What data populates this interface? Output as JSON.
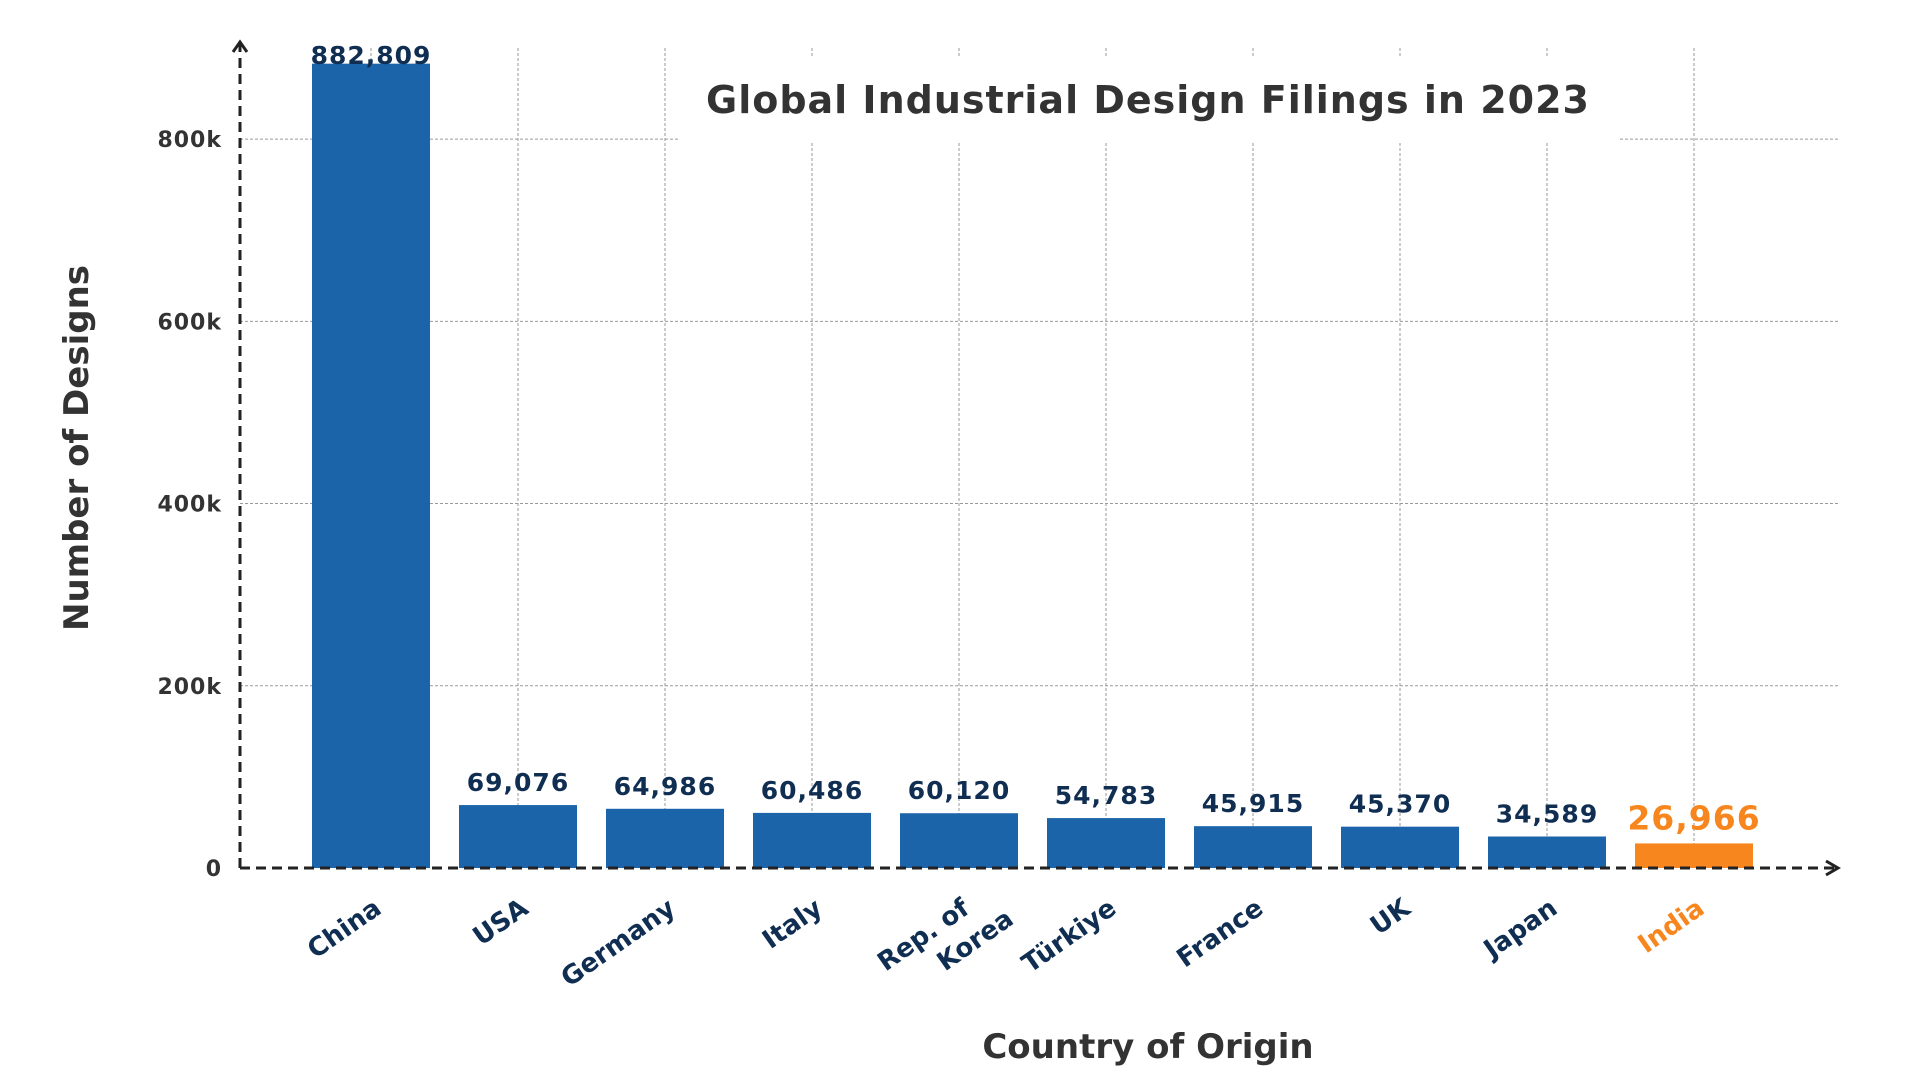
{
  "chart_data": {
    "type": "bar",
    "title": "Global Industrial Design Filings in 2023",
    "xlabel": "Country of Origin",
    "ylabel": "Number of Designs",
    "categories": [
      "China",
      "USA",
      "Germany",
      "Italy",
      "Rep. of Korea",
      "Türkiye",
      "France",
      "UK",
      "Japan",
      "India"
    ],
    "values": [
      882809,
      69076,
      64986,
      60486,
      60120,
      54783,
      45915,
      45370,
      34589,
      26966
    ],
    "value_labels": [
      "882,809",
      "69,076",
      "64,986",
      "60,486",
      "60,120",
      "54,783",
      "45,915",
      "45,370",
      "34,589",
      "26,966"
    ],
    "highlight_category": "India",
    "ylim": [
      0,
      900000
    ],
    "yticks": [
      0,
      200000,
      400000,
      600000,
      800000
    ],
    "ytick_labels": [
      "0",
      "200k",
      "400k",
      "600k",
      "800k"
    ],
    "grid": true,
    "legend": "none"
  },
  "colors": {
    "bar": "#1b64aa",
    "highlight": "#f7861e",
    "label": "#0f2e52",
    "text": "#333333",
    "grid": "#9a9a9a",
    "axis": "#222222"
  }
}
